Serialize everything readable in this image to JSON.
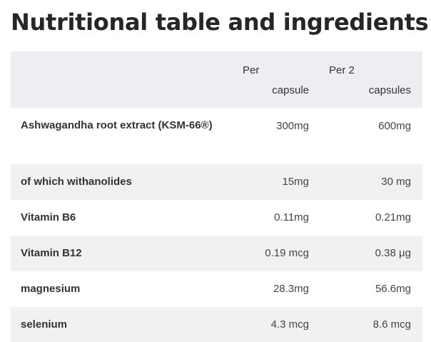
{
  "title": "Nutritional table and ingredients:",
  "table": {
    "headers": {
      "col1_line1": "Per",
      "col1_line2": "capsule",
      "col2_line1": "Per 2",
      "col2_line2": "capsules"
    },
    "rows": [
      {
        "name": "Ashwagandha root extract (KSM-66®)",
        "per_capsule": "300mg",
        "per_2_capsules": "600mg"
      },
      {
        "name": "of which withanolides",
        "per_capsule": "15mg",
        "per_2_capsules": "30 mg"
      },
      {
        "name": "Vitamin B6",
        "per_capsule": "0.11mg",
        "per_2_capsules": "0.21mg"
      },
      {
        "name": "Vitamin B12",
        "per_capsule": "0.19 mcg",
        "per_2_capsules": "0.38 µg"
      },
      {
        "name": "magnesium",
        "per_capsule": "28.3mg",
        "per_2_capsules": "56.6mg"
      },
      {
        "name": "selenium",
        "per_capsule": "4.3 mcg",
        "per_2_capsules": "8.6 mcg"
      }
    ]
  }
}
